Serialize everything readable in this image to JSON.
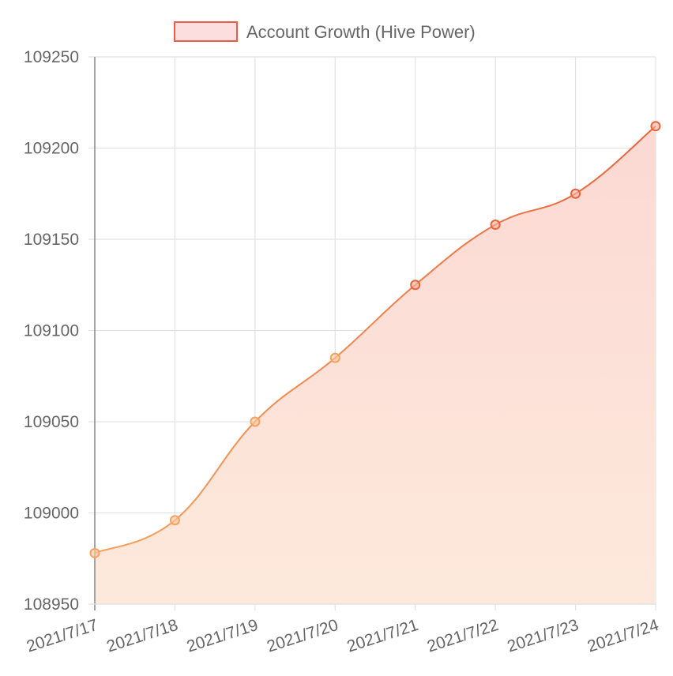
{
  "chart_data": {
    "type": "area",
    "title": "",
    "xlabel": "",
    "ylabel": "",
    "categories": [
      "2021/7/17",
      "2021/7/18",
      "2021/7/19",
      "2021/7/20",
      "2021/7/21",
      "2021/7/22",
      "2021/7/23",
      "2021/7/24"
    ],
    "series": [
      {
        "name": "Account Growth (Hive Power)",
        "values": [
          108978,
          108996,
          109050,
          109085,
          109125,
          109158,
          109175,
          109212
        ]
      }
    ],
    "ylim": [
      108950,
      109250
    ],
    "yticks": [
      108950,
      109000,
      109050,
      109100,
      109150,
      109200,
      109250
    ],
    "grid": true,
    "legend": "top-center",
    "colors": {
      "line_start": "#f5a25c",
      "line_end": "#e8643c",
      "fill_top": "#fcd9d3",
      "fill_bottom": "#fde9dc",
      "legend_fill": "#fcdede",
      "legend_border": "#e85c4a",
      "grid": "#e2e2e2",
      "axis": "#888888"
    }
  }
}
